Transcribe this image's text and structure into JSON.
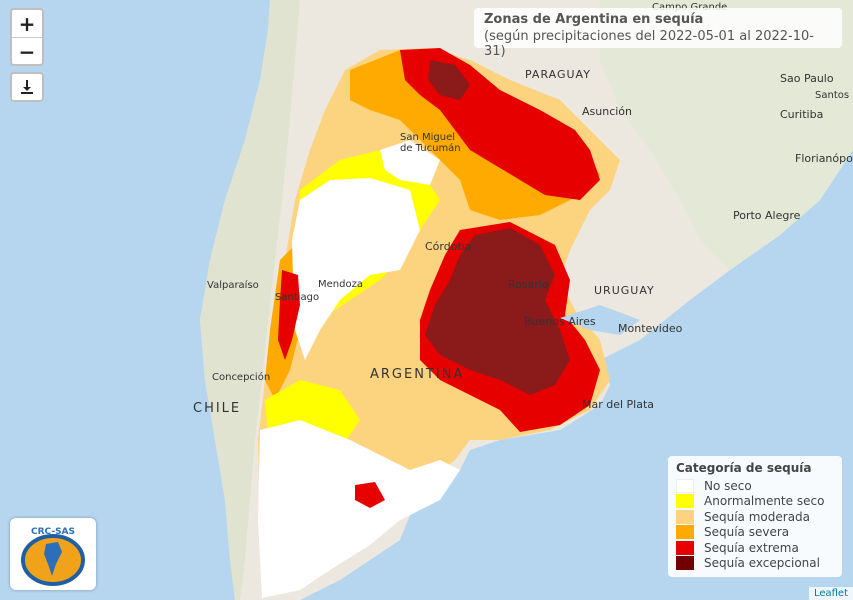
{
  "title": {
    "line1": "Zonas de Argentina en sequía",
    "line2": "(según precipitaciones del 2022-05-01 al 2022-10-31)"
  },
  "controls": {
    "zoom_in": "+",
    "zoom_out": "−",
    "download_icon": "download-icon"
  },
  "legend": {
    "title": "Categoría de sequía",
    "items": [
      {
        "label": "No seco",
        "color": "#ffffff"
      },
      {
        "label": "Anormalmente seco",
        "color": "#ffff00"
      },
      {
        "label": "Sequía moderada",
        "color": "#fcd37f"
      },
      {
        "label": "Sequía severa",
        "color": "#ffaa00"
      },
      {
        "label": "Sequía extrema",
        "color": "#e60000"
      },
      {
        "label": "Sequía excepcional",
        "color": "#730000"
      }
    ]
  },
  "places": {
    "paraguay": "PARAGUAY",
    "asuncion": "Asunción",
    "campo_grande": "Campo Grande",
    "sao_paulo": "Sao Paulo",
    "santos": "Santos",
    "curitiba": "Curitiba",
    "florianopolis": "Florianópo",
    "porto_alegre": "Porto Alegre",
    "san_miguel": "San Miguel",
    "de_tucuman": "de Tucumán",
    "cordoba": "Córdoba",
    "rosario": "Rosario",
    "uruguay": "URUGUAY",
    "buenos_aires": "Buenos Aires",
    "montevideo": "Montevideo",
    "valparaiso": "Valparaíso",
    "santiago": "Santiago",
    "mendoza": "Mendoza",
    "concepcion": "Concepción",
    "argentina": "ARGENTINA",
    "chile": "CHILE",
    "mar_del_plata": "Mar del Plata"
  },
  "logo": {
    "text": "CRC-SAS"
  },
  "attribution": "Leaflet"
}
